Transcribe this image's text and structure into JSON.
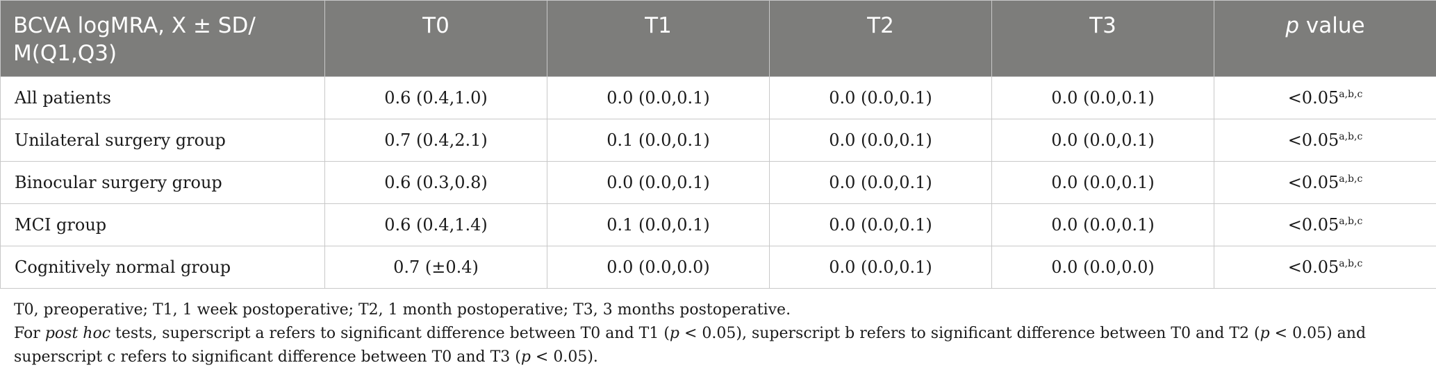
{
  "table": {
    "header": {
      "label": "BCVA logMRA, X ± SD/ M(Q1,Q3)",
      "t0": "T0",
      "t1": "T1",
      "t2": "T2",
      "t3": "T3",
      "p_italic": "p",
      "p_rest": " value"
    },
    "rows": [
      {
        "label": "All patients",
        "t0": "0.6 (0.4,1.0)",
        "t1": "0.0 (0.0,0.1)",
        "t2": "0.0 (0.0,0.1)",
        "t3": "0.0 (0.0,0.1)",
        "p": "<0.05",
        "p_sup": "a,b,c"
      },
      {
        "label": "Unilateral surgery group",
        "t0": "0.7 (0.4,2.1)",
        "t1": "0.1 (0.0,0.1)",
        "t2": "0.0 (0.0,0.1)",
        "t3": "0.0 (0.0,0.1)",
        "p": "<0.05",
        "p_sup": "a,b,c"
      },
      {
        "label": "Binocular surgery group",
        "t0": "0.6 (0.3,0.8)",
        "t1": "0.0 (0.0,0.1)",
        "t2": "0.0 (0.0,0.1)",
        "t3": "0.0 (0.0,0.1)",
        "p": "<0.05",
        "p_sup": "a,b,c"
      },
      {
        "label": "MCI group",
        "t0": "0.6 (0.4,1.4)",
        "t1": "0.1 (0.0,0.1)",
        "t2": "0.0 (0.0,0.1)",
        "t3": "0.0 (0.0,0.1)",
        "p": "<0.05",
        "p_sup": "a,b,c"
      },
      {
        "label": "Cognitively normal group",
        "t0": "0.7 (±0.4)",
        "t1": "0.0 (0.0,0.0)",
        "t2": "0.0 (0.0,0.1)",
        "t3": "0.0 (0.0,0.0)",
        "p": "<0.05",
        "p_sup": "a,b,c"
      }
    ]
  },
  "footnotes": {
    "abbrev": "T0, preoperative; T1, 1 week postoperative; T2, 1 month postoperative; T3, 3 months postoperative.",
    "n2_a": "For ",
    "n2_b": "post hoc",
    "n2_c": " tests, superscript a refers to significant difference between T0 and T1 (",
    "n2_d": "p",
    "n2_e": " < 0.05), superscript b refers to significant difference between T0 and T2 (",
    "n2_f": "p",
    "n2_g": " < 0.05) and superscript c refers to significant difference between T0 and T3 (",
    "n2_h": "p",
    "n2_i": " < 0.05)."
  },
  "colors": {
    "header_bg": "#7d7d7b",
    "header_text": "#ffffff",
    "border": "#c8c8c8",
    "body_text": "#1a1a1a"
  }
}
